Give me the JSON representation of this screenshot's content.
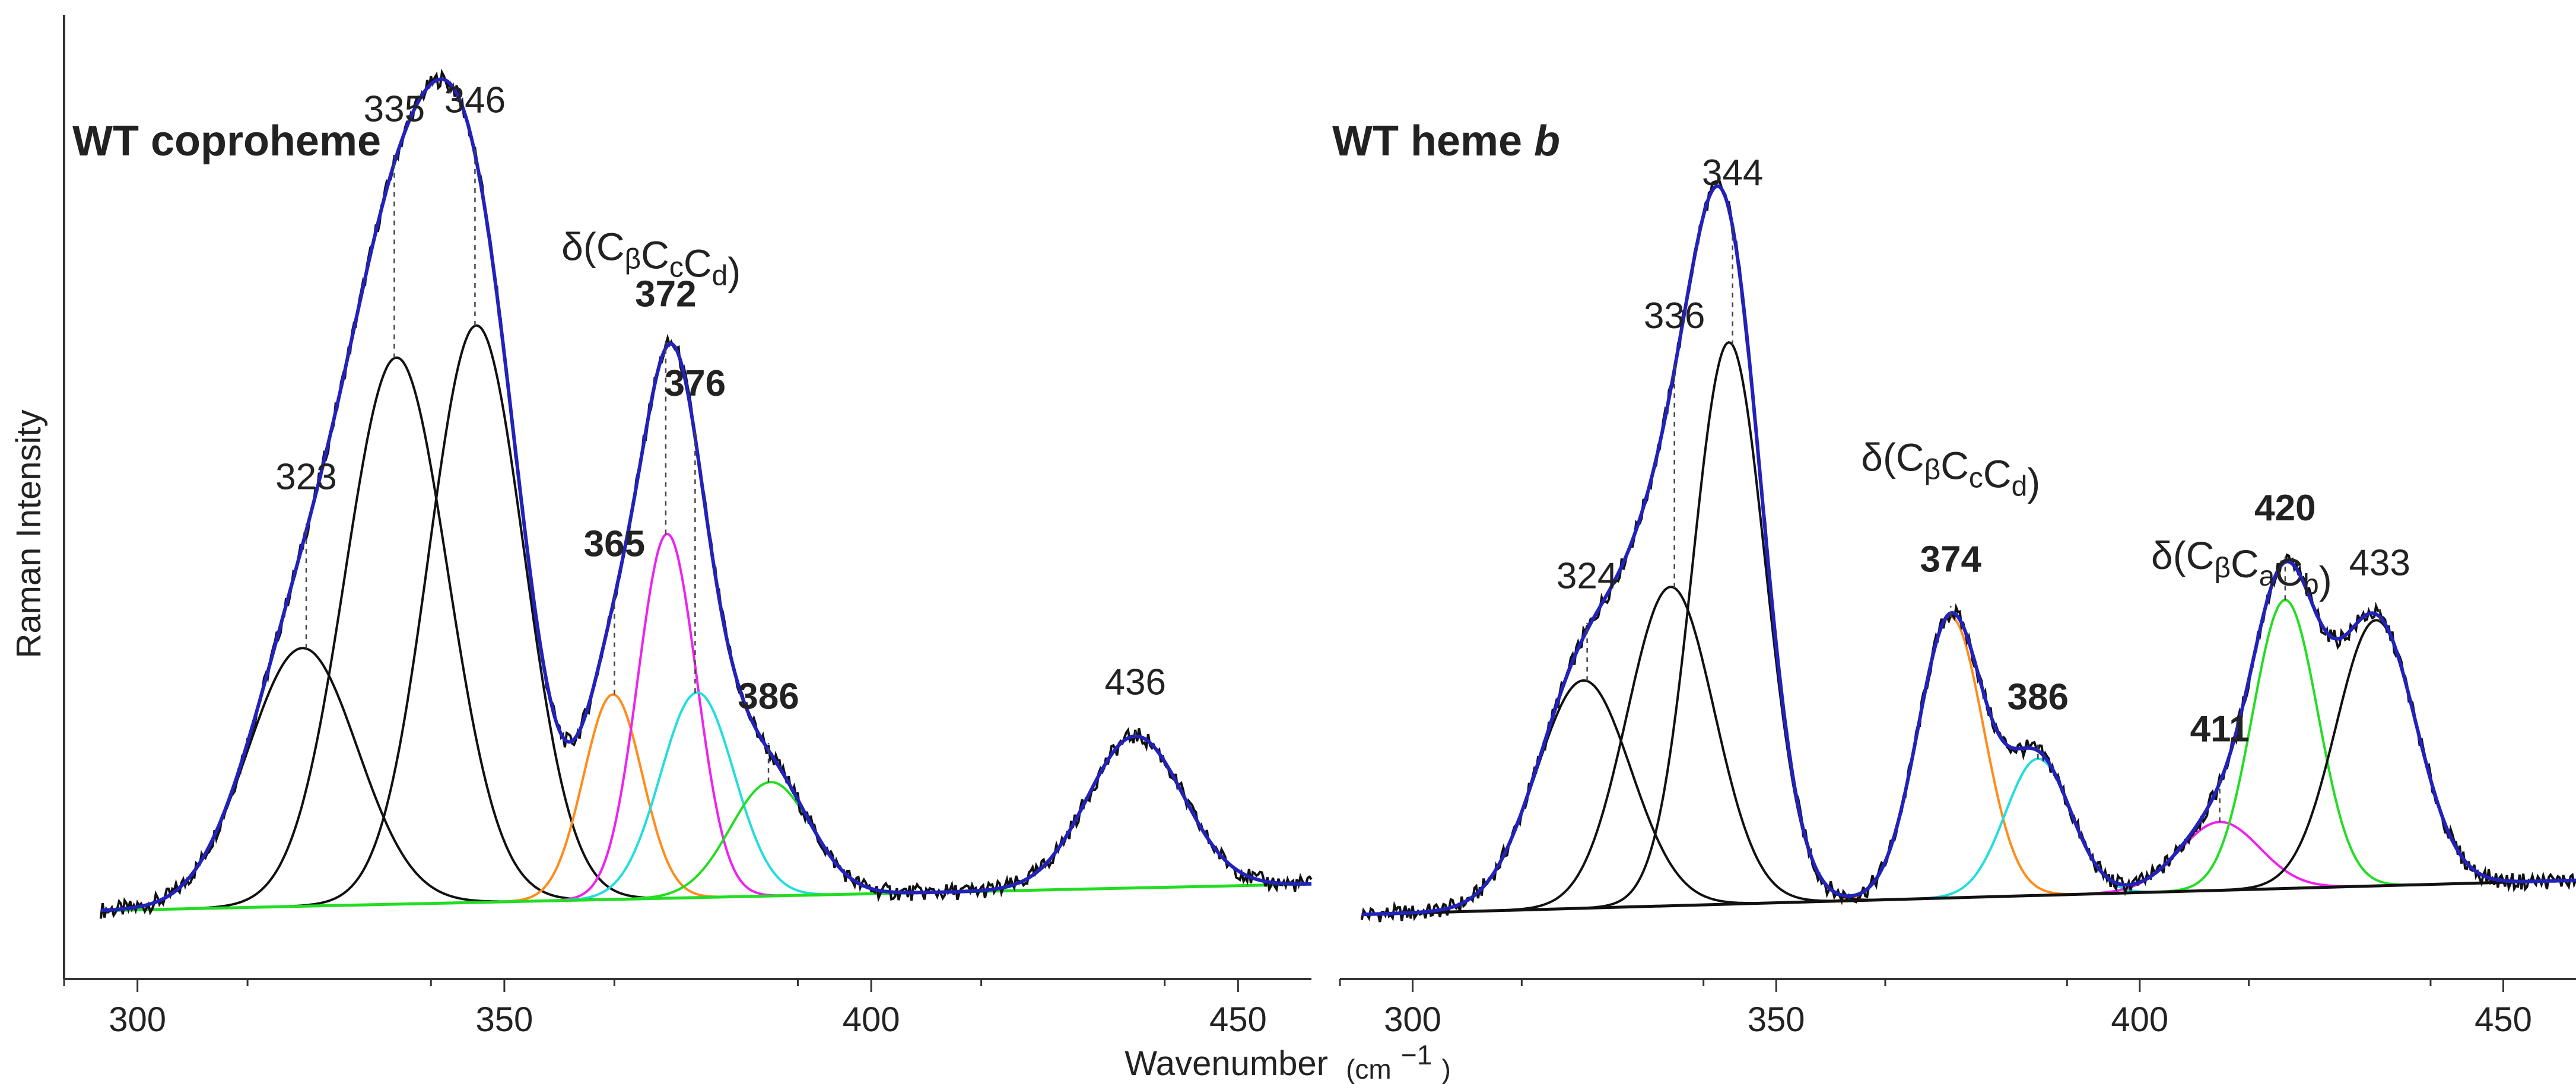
{
  "chart_data": [
    {
      "type": "line",
      "title": "WT coproheme",
      "title_em": "",
      "xlabel": "Wavenumber",
      "xunit": "(cm",
      "xunit_sup": "−1",
      "xunit_close": ")",
      "ylabel": "Raman Intensity",
      "xlim": [
        290,
        460
      ],
      "ylim": [
        -0.12,
        1.15
      ],
      "xticks": [
        300,
        350,
        400,
        450
      ],
      "xtick_labels": [
        "300",
        "350",
        "400",
        "450"
      ],
      "baseline": {
        "color": "#22dd22",
        "x_start": 295,
        "y_start": -0.03,
        "x_end": 460,
        "y_end": 0.005
      },
      "components": [
        {
          "center": 322.5,
          "height": 0.34,
          "width": 7.5,
          "color": "#111111"
        },
        {
          "center": 335.3,
          "height": 0.72,
          "width": 7.0,
          "color": "#111111"
        },
        {
          "center": 346.2,
          "height": 0.76,
          "width": 6.5,
          "color": "#111111"
        },
        {
          "center": 364.8,
          "height": 0.27,
          "width": 4.0,
          "color": "#ff8c1a"
        },
        {
          "center": 372.2,
          "height": 0.48,
          "width": 4.0,
          "color": "#ee22ee"
        },
        {
          "center": 376.3,
          "height": 0.27,
          "width": 5.0,
          "color": "#22dddd"
        },
        {
          "center": 386.3,
          "height": 0.15,
          "width": 5.5,
          "color": "#22dd22"
        },
        {
          "center": 436.0,
          "height": 0.2,
          "width": 6.5,
          "color": "#111111"
        }
      ],
      "peak_labels": [
        {
          "x": 323,
          "text": "323",
          "bold": false
        },
        {
          "x": 335,
          "text": "335",
          "bold": false
        },
        {
          "x": 346,
          "text": "346",
          "bold": false
        },
        {
          "x": 365,
          "text": "365",
          "bold": true
        },
        {
          "x": 372,
          "text": "372",
          "bold": true
        },
        {
          "x": 376,
          "text": "376",
          "bold": true
        },
        {
          "x": 386,
          "text": "386",
          "bold": true
        },
        {
          "x": 436,
          "text": "436",
          "bold": false
        }
      ],
      "annotations": [
        {
          "x": 370,
          "parts": [
            {
              "text": "δ(C",
              "sub": false
            },
            {
              "text": "β",
              "sub": true
            },
            {
              "text": "C",
              "sub": false
            },
            {
              "text": "c",
              "sub": true
            },
            {
              "text": "C",
              "sub": false
            },
            {
              "text": "d",
              "sub": true
            },
            {
              "text": ")",
              "sub": false
            }
          ]
        }
      ]
    },
    {
      "type": "line",
      "title": "WT heme ",
      "title_em": "b",
      "xlabel": "",
      "ylabel": "",
      "xlim": [
        290,
        460
      ],
      "ylim": [
        -0.12,
        1.15
      ],
      "xticks": [
        300,
        350,
        400,
        450
      ],
      "xtick_labels": [
        "300",
        "350",
        "400",
        "450"
      ],
      "baseline": {
        "color": "#111111",
        "x_start": 293,
        "y_start": -0.035,
        "x_end": 460,
        "y_end": 0.01
      },
      "components": [
        {
          "center": 323.5,
          "height": 0.3,
          "width": 6.5,
          "color": "#111111"
        },
        {
          "center": 335.5,
          "height": 0.42,
          "width": 6.0,
          "color": "#111111"
        },
        {
          "center": 343.5,
          "height": 0.74,
          "width": 5.0,
          "color": "#111111"
        },
        {
          "center": 374.0,
          "height": 0.37,
          "width": 4.5,
          "color": "#ff8c1a"
        },
        {
          "center": 386.0,
          "height": 0.18,
          "width": 4.5,
          "color": "#22dddd"
        },
        {
          "center": 411.0,
          "height": 0.09,
          "width": 5.5,
          "color": "#ee22ee"
        },
        {
          "center": 420.0,
          "height": 0.38,
          "width": 4.5,
          "color": "#22dd22"
        },
        {
          "center": 432.5,
          "height": 0.35,
          "width": 5.5,
          "color": "#111111"
        }
      ],
      "peak_labels": [
        {
          "x": 324,
          "text": "324",
          "bold": false
        },
        {
          "x": 336,
          "text": "336",
          "bold": false
        },
        {
          "x": 344,
          "text": "344",
          "bold": false
        },
        {
          "x": 374,
          "text": "374",
          "bold": true
        },
        {
          "x": 386,
          "text": "386",
          "bold": true
        },
        {
          "x": 411,
          "text": "411",
          "bold": true
        },
        {
          "x": 420,
          "text": "420",
          "bold": true
        },
        {
          "x": 433,
          "text": "433",
          "bold": false
        }
      ],
      "annotations": [
        {
          "x": 374,
          "parts": [
            {
              "text": "δ(C",
              "sub": false
            },
            {
              "text": "β",
              "sub": true
            },
            {
              "text": "C",
              "sub": false
            },
            {
              "text": "c",
              "sub": true
            },
            {
              "text": "C",
              "sub": false
            },
            {
              "text": "d",
              "sub": true
            },
            {
              "text": ")",
              "sub": false
            }
          ]
        },
        {
          "x": 414,
          "parts": [
            {
              "text": "δ(C",
              "sub": false
            },
            {
              "text": "β",
              "sub": true
            },
            {
              "text": "C",
              "sub": false
            },
            {
              "text": "a",
              "sub": true
            },
            {
              "text": "C",
              "sub": false
            },
            {
              "text": "b",
              "sub": true
            },
            {
              "text": ")",
              "sub": false
            }
          ]
        }
      ]
    }
  ],
  "colors": {
    "envelope": "#2222bb",
    "experimental": "#111111"
  }
}
